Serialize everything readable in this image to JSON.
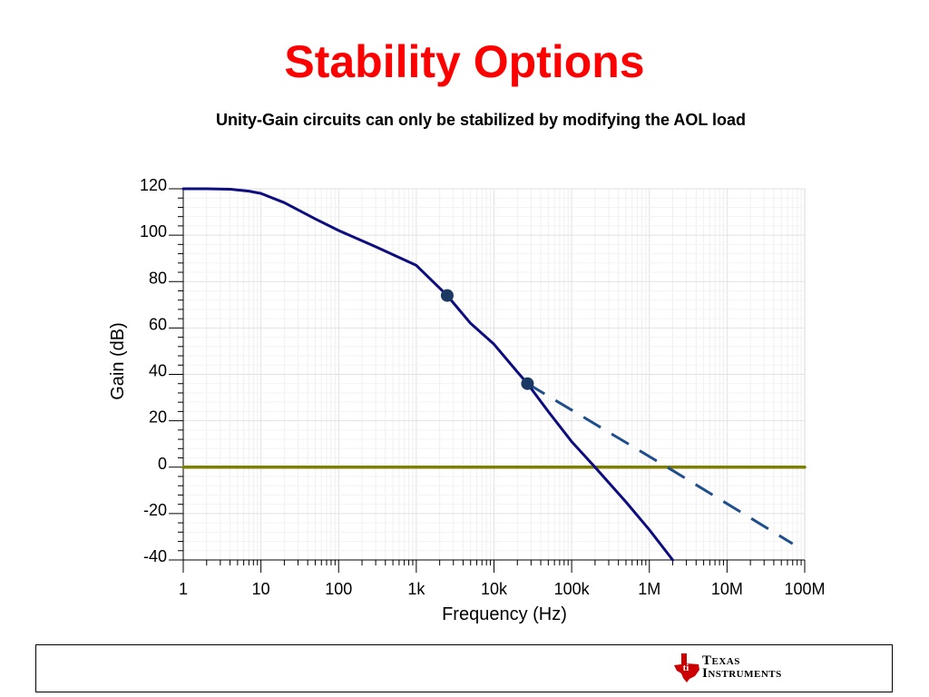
{
  "slide": {
    "title": "Stability Options",
    "subtitle": "Unity-Gain circuits can only be stabilized by modifying the AOL load"
  },
  "footer": {
    "logo_line1": "Texas",
    "logo_line2": "Instruments",
    "logo_icon": "texas-state-icon"
  },
  "chart_data": {
    "type": "line",
    "title": "",
    "xlabel": "Frequency (Hz)",
    "ylabel": "Gain (dB)",
    "xscale": "log",
    "xlim": [
      1,
      100000000
    ],
    "ylim": [
      -40,
      120
    ],
    "grid": true,
    "x_ticks": [
      1,
      10,
      100,
      1000,
      10000,
      100000,
      1000000,
      10000000,
      100000000
    ],
    "x_tick_labels": [
      "1",
      "10",
      "100",
      "1k",
      "10k",
      "100k",
      "1M",
      "10M",
      "100M"
    ],
    "y_ticks": [
      120,
      100,
      80,
      60,
      40,
      20,
      0,
      -20,
      -40
    ],
    "y_tick_labels": [
      "120",
      "100",
      "80",
      "60",
      "40",
      "20",
      "0",
      "-20",
      "-40"
    ],
    "colors": {
      "aol": "#0d0d80",
      "modified": "#1f4e8c",
      "unity": "#808000",
      "marker": "#1b3a63"
    },
    "series": [
      {
        "key": "aol",
        "style": "solid",
        "points": [
          [
            1,
            120
          ],
          [
            2,
            120
          ],
          [
            4,
            119.8
          ],
          [
            7,
            119
          ],
          [
            10,
            118
          ],
          [
            20,
            114
          ],
          [
            50,
            107
          ],
          [
            100,
            102
          ],
          [
            300,
            95
          ],
          [
            1000,
            87
          ],
          [
            2500,
            74
          ],
          [
            5000,
            62
          ],
          [
            10000,
            53
          ],
          [
            20000,
            41
          ],
          [
            27000,
            36
          ],
          [
            50000,
            24
          ],
          [
            100000,
            11
          ],
          [
            200000,
            0
          ],
          [
            500000,
            -15
          ],
          [
            1000000,
            -27
          ],
          [
            2000000,
            -40
          ]
        ]
      },
      {
        "key": "modified",
        "style": "dashed",
        "points": [
          [
            27000,
            36
          ],
          [
            1700000,
            0
          ],
          [
            70000000,
            -33
          ]
        ]
      },
      {
        "key": "unity",
        "style": "solid",
        "points": [
          [
            1,
            0
          ],
          [
            100000000,
            0
          ]
        ]
      }
    ],
    "markers": [
      [
        2500,
        74
      ],
      [
        27000,
        36
      ]
    ]
  }
}
